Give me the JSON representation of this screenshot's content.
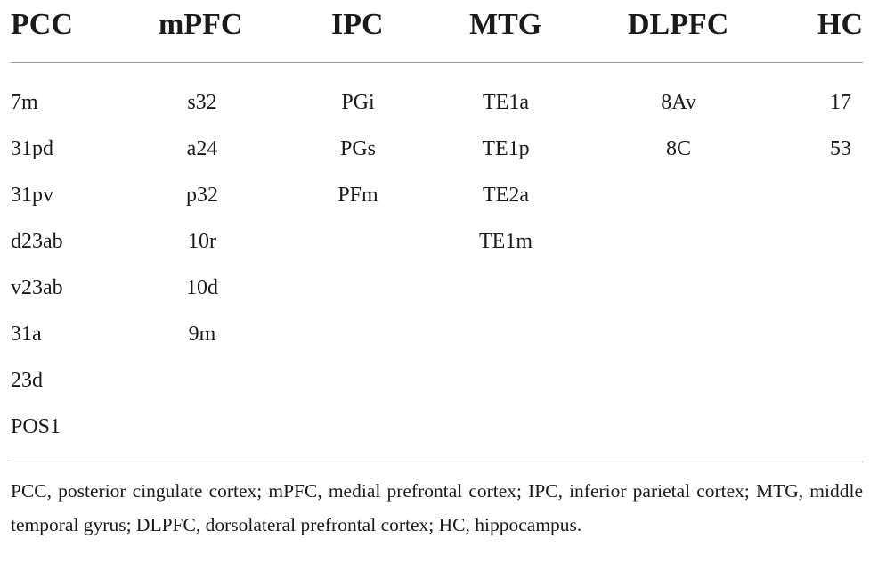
{
  "table": {
    "headers": [
      "PCC",
      "mPFC",
      "IPC",
      "MTG",
      "DLPFC",
      "HC"
    ],
    "columns": [
      [
        "7m",
        "31pd",
        "31pv",
        "d23ab",
        "v23ab",
        "31a",
        "23d",
        "POS1"
      ],
      [
        "s32",
        "a24",
        "p32",
        "10r",
        "10d",
        "9m"
      ],
      [
        "PGi",
        "PGs",
        "PFm"
      ],
      [
        "TE1a",
        "TE1p",
        "TE2a",
        "TE1m"
      ],
      [
        "8Av",
        "8C"
      ],
      [
        "17",
        "53"
      ]
    ]
  },
  "footnote": "PCC, posterior cingulate cortex; mPFC, medial prefrontal cortex; IPC, inferior parietal cortex; MTG, middle temporal gyrus; DLPFC, dorsolateral prefrontal cortex; HC, hippocampus."
}
